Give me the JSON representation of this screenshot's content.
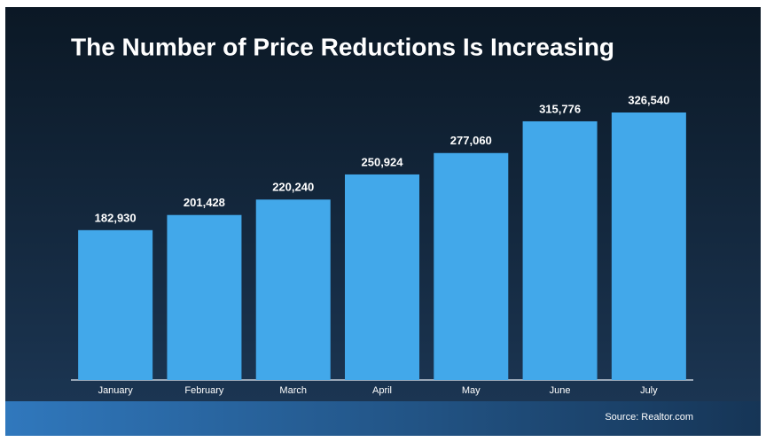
{
  "chart_data": {
    "type": "bar",
    "title": "The Number of Price Reductions Is Increasing",
    "source": "Source: Realtor.com",
    "categories": [
      "January",
      "February",
      "March",
      "April",
      "May",
      "June",
      "July"
    ],
    "values": [
      182930,
      201428,
      220240,
      250924,
      277060,
      315776,
      326540
    ],
    "value_labels": [
      "182,930",
      "201,428",
      "220,240",
      "250,924",
      "277,060",
      "315,776",
      "326,540"
    ],
    "color": "#42a8ea",
    "grid": false
  }
}
